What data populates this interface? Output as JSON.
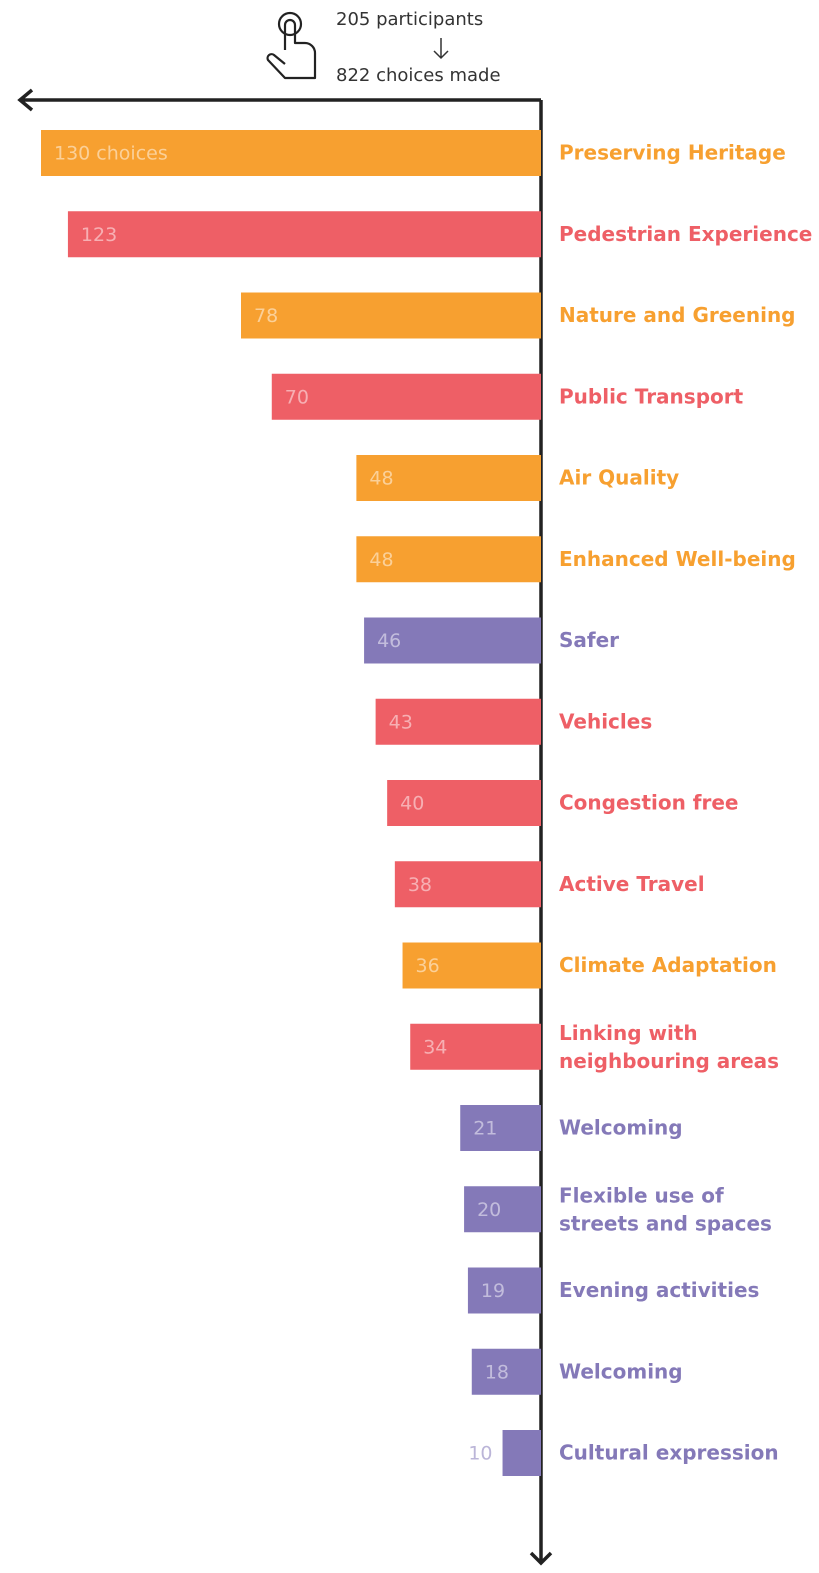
{
  "header": {
    "participants": "205 participants",
    "choices": "822 choices made"
  },
  "chart_data": {
    "type": "bar",
    "orientation": "horizontal",
    "categories": [
      "Preserving Heritage",
      "Pedestrian Experience",
      "Nature and Greening",
      "Public Transport",
      "Air Quality",
      "Enhanced Well-being",
      "Safer",
      "Vehicles",
      "Congestion free",
      "Active Travel",
      "Climate Adaptation",
      "Linking with\nneighbouring areas",
      "Welcoming",
      "Flexible use of\nstreets and spaces",
      "Evening activities",
      "Welcoming",
      "Cultural expression"
    ],
    "values": [
      130,
      123,
      78,
      70,
      48,
      48,
      46,
      43,
      40,
      38,
      36,
      34,
      21,
      20,
      19,
      18,
      10
    ],
    "value_labels": [
      "130 choices",
      "123",
      "78",
      "70",
      "48",
      "48",
      "46",
      "43",
      "40",
      "38",
      "36",
      "34",
      "21",
      "20",
      "19",
      "18",
      "10"
    ],
    "colors": [
      "#f7a030",
      "#ee5f66",
      "#f7a030",
      "#ee5f66",
      "#f7a030",
      "#f7a030",
      "#8479b8",
      "#ee5f66",
      "#ee5f66",
      "#ee5f66",
      "#f7a030",
      "#ee5f66",
      "#8479b8",
      "#8479b8",
      "#8479b8",
      "#8479b8",
      "#8479b8"
    ]
  }
}
